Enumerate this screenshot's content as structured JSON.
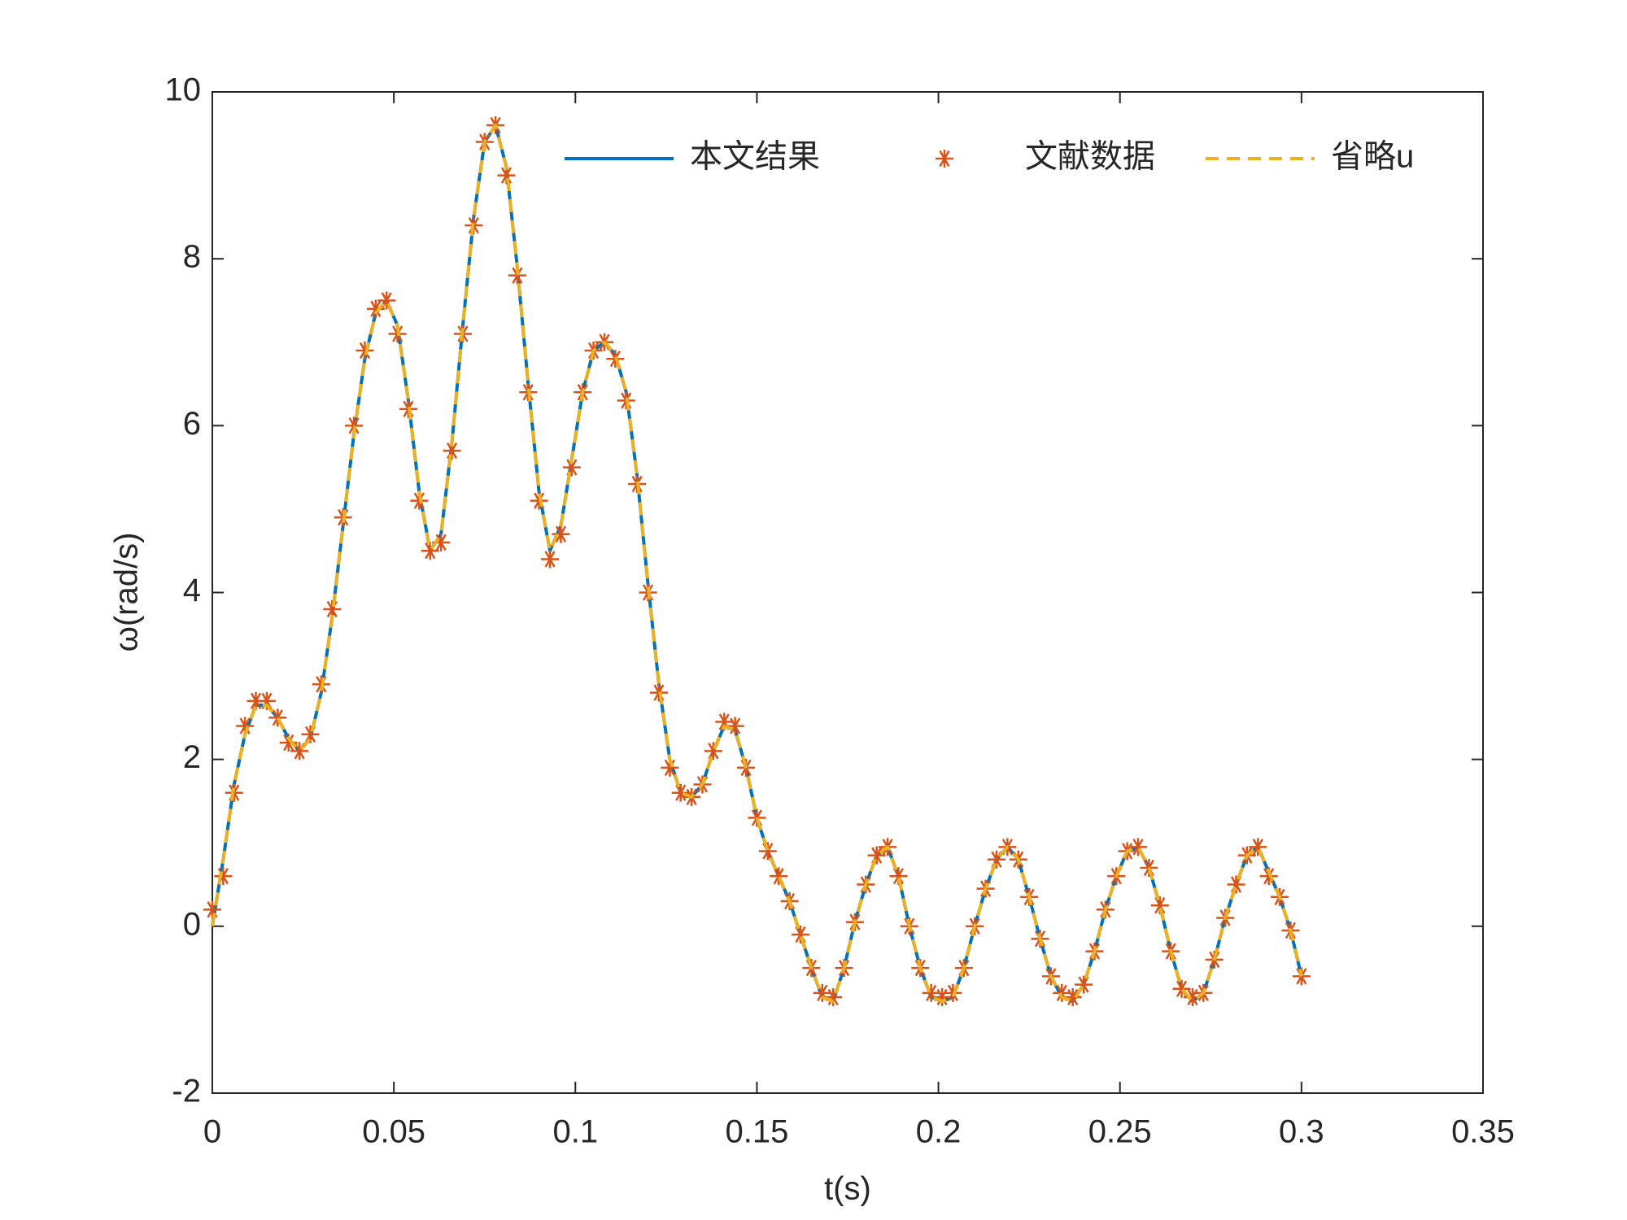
{
  "chart_data": {
    "type": "line",
    "xlabel": "t(s)",
    "ylabel": "ω(rad/s)",
    "x": [
      0,
      0.003,
      0.006,
      0.009,
      0.012,
      0.015,
      0.018,
      0.021,
      0.024,
      0.027,
      0.03,
      0.033,
      0.036,
      0.039,
      0.042,
      0.045,
      0.048,
      0.051,
      0.054,
      0.057,
      0.06,
      0.063,
      0.066,
      0.069,
      0.072,
      0.075,
      0.078,
      0.081,
      0.084,
      0.087,
      0.09,
      0.093,
      0.096,
      0.099,
      0.102,
      0.105,
      0.108,
      0.111,
      0.114,
      0.117,
      0.12,
      0.123,
      0.126,
      0.129,
      0.132,
      0.135,
      0.138,
      0.141,
      0.144,
      0.147,
      0.15,
      0.153,
      0.156,
      0.159,
      0.162,
      0.165,
      0.168,
      0.171,
      0.174,
      0.177,
      0.18,
      0.183,
      0.186,
      0.189,
      0.192,
      0.195,
      0.198,
      0.201,
      0.204,
      0.207,
      0.21,
      0.213,
      0.216,
      0.219,
      0.222,
      0.225,
      0.228,
      0.231,
      0.234,
      0.237,
      0.24,
      0.243,
      0.246,
      0.249,
      0.252,
      0.255,
      0.258,
      0.261,
      0.264,
      0.267,
      0.27,
      0.273,
      0.276,
      0.279,
      0.282,
      0.285,
      0.288,
      0.291,
      0.294,
      0.297,
      0.3
    ],
    "series": [
      {
        "name": "本文结果",
        "color": "#0072BD",
        "line_style": "solid",
        "marker": "none",
        "values": [
          0,
          0.8,
          1.7,
          2.3,
          2.65,
          2.65,
          2.5,
          2.25,
          2.1,
          2.25,
          2.8,
          3.7,
          4.8,
          5.9,
          6.8,
          7.35,
          7.5,
          7.2,
          6.3,
          5.2,
          4.5,
          4.7,
          5.8,
          7.2,
          8.5,
          9.4,
          9.6,
          9.1,
          7.9,
          6.5,
          5.2,
          4.5,
          4.8,
          5.6,
          6.4,
          6.9,
          7.0,
          6.85,
          6.4,
          5.4,
          4.1,
          2.9,
          2.0,
          1.6,
          1.55,
          1.7,
          2.1,
          2.4,
          2.35,
          1.9,
          1.3,
          0.9,
          0.6,
          0.3,
          -0.1,
          -0.5,
          -0.85,
          -0.9,
          -0.5,
          0.05,
          0.5,
          0.85,
          0.95,
          0.6,
          0.0,
          -0.5,
          -0.85,
          -0.9,
          -0.85,
          -0.5,
          0.0,
          0.45,
          0.8,
          0.95,
          0.8,
          0.35,
          -0.15,
          -0.6,
          -0.85,
          -0.9,
          -0.7,
          -0.3,
          0.2,
          0.6,
          0.9,
          0.95,
          0.7,
          0.25,
          -0.3,
          -0.75,
          -0.9,
          -0.8,
          -0.4,
          0.1,
          0.5,
          0.85,
          0.95,
          0.65,
          0.35,
          -0.05,
          -0.6
        ]
      },
      {
        "name": "文献数据",
        "color": "#D95319",
        "line_style": "none",
        "marker": "asterisk",
        "values": [
          0.2,
          0.6,
          1.6,
          2.4,
          2.7,
          2.7,
          2.5,
          2.2,
          2.1,
          2.3,
          2.9,
          3.8,
          4.9,
          6.0,
          6.9,
          7.4,
          7.5,
          7.1,
          6.2,
          5.1,
          4.5,
          4.6,
          5.7,
          7.1,
          8.4,
          9.4,
          9.6,
          9.0,
          7.8,
          6.4,
          5.1,
          4.4,
          4.7,
          5.5,
          6.4,
          6.9,
          7.0,
          6.8,
          6.3,
          5.3,
          4.0,
          2.8,
          1.9,
          1.6,
          1.55,
          1.7,
          2.1,
          2.45,
          2.4,
          1.9,
          1.3,
          0.9,
          0.6,
          0.3,
          -0.1,
          -0.5,
          -0.8,
          -0.85,
          -0.5,
          0.05,
          0.5,
          0.85,
          0.95,
          0.6,
          0.0,
          -0.5,
          -0.8,
          -0.85,
          -0.8,
          -0.5,
          0.0,
          0.45,
          0.8,
          0.95,
          0.8,
          0.35,
          -0.15,
          -0.6,
          -0.8,
          -0.85,
          -0.7,
          -0.3,
          0.2,
          0.6,
          0.9,
          0.95,
          0.7,
          0.25,
          -0.3,
          -0.75,
          -0.85,
          -0.8,
          -0.4,
          0.1,
          0.5,
          0.85,
          0.95,
          0.6,
          0.35,
          -0.05,
          -0.6
        ]
      },
      {
        "name": "省略u",
        "color": "#EDB120",
        "line_style": "dashed",
        "marker": "none",
        "values": [
          0,
          0.8,
          1.7,
          2.3,
          2.65,
          2.65,
          2.5,
          2.25,
          2.1,
          2.25,
          2.8,
          3.7,
          4.8,
          5.9,
          6.8,
          7.35,
          7.5,
          7.2,
          6.3,
          5.2,
          4.5,
          4.7,
          5.8,
          7.2,
          8.5,
          9.4,
          9.6,
          9.1,
          7.9,
          6.5,
          5.2,
          4.5,
          4.8,
          5.6,
          6.4,
          6.9,
          7.0,
          6.85,
          6.4,
          5.4,
          4.1,
          2.9,
          2.0,
          1.6,
          1.55,
          1.7,
          2.1,
          2.4,
          2.35,
          1.9,
          1.3,
          0.9,
          0.6,
          0.3,
          -0.1,
          -0.5,
          -0.85,
          -0.9,
          -0.5,
          0.05,
          0.5,
          0.85,
          0.95,
          0.6,
          0.0,
          -0.5,
          -0.85,
          -0.9,
          -0.85,
          -0.5,
          0.0,
          0.45,
          0.8,
          0.95,
          0.8,
          0.35,
          -0.15,
          -0.6,
          -0.85,
          -0.9,
          -0.7,
          -0.3,
          0.2,
          0.6,
          0.9,
          0.95,
          0.7,
          0.25,
          -0.3,
          -0.75,
          -0.9,
          -0.8,
          -0.4,
          0.1,
          0.5,
          0.85,
          0.95,
          0.65,
          0.35,
          -0.05,
          -0.6
        ]
      }
    ],
    "xlim": [
      0,
      0.35
    ],
    "xticks": [
      0,
      0.05,
      0.1,
      0.15,
      0.2,
      0.25,
      0.3,
      0.35
    ],
    "ylim": [
      -2,
      10
    ],
    "yticks": [
      -2,
      0,
      2,
      4,
      6,
      8,
      10
    ],
    "grid": false,
    "legend": "northeast"
  }
}
